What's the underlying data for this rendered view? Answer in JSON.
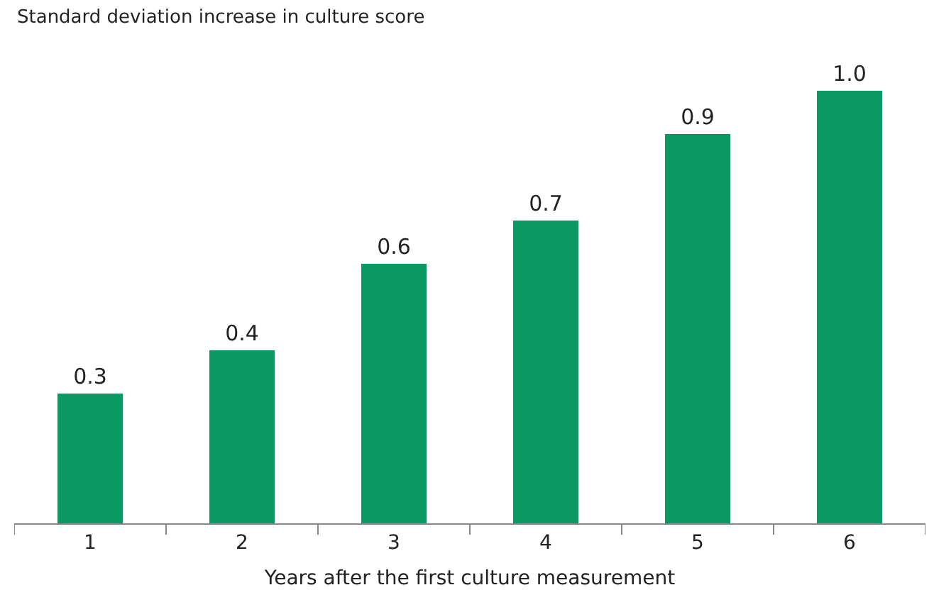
{
  "chart_data": {
    "type": "bar",
    "ylabel": "Standard deviation increase in culture score",
    "xlabel": "Years after the first culture measurement",
    "categories": [
      "1",
      "2",
      "3",
      "4",
      "5",
      "6"
    ],
    "values": [
      0.3,
      0.4,
      0.6,
      0.7,
      0.9,
      1.0
    ],
    "value_labels": [
      "0.3",
      "0.4",
      "0.6",
      "0.7",
      "0.9",
      "1.0"
    ],
    "color": "#0a9863",
    "tick_labels": "x",
    "grid": false,
    "legend": false
  }
}
